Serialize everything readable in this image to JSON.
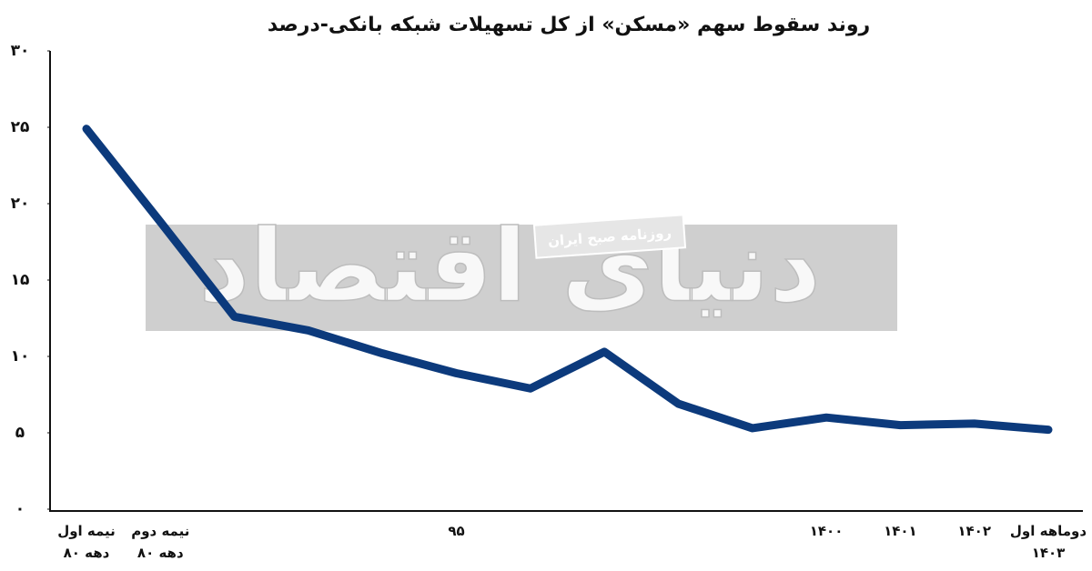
{
  "chart_data": {
    "type": "line",
    "title": "روند سقوط سهم «مسکن» از کل تسهیلات شبکه بانکی-درصد",
    "watermark": "دنیای اقتصاد",
    "watermark_subtitle": "روزنامه صبح ایران",
    "categories": [
      "نیمه اول\nدهه ۸۰",
      "نیمه دوم\nدهه ۸۰",
      null,
      null,
      null,
      "۹۵",
      null,
      null,
      null,
      null,
      "۱۴۰۰",
      "۱۴۰۱",
      "۱۴۰۲",
      "دوماهه اول\n۱۴۰۳"
    ],
    "series": [
      {
        "name": "سهم مسکن",
        "color": "#0c3a7c",
        "values": [
          24.9,
          18.8,
          12.6,
          11.7,
          10.2,
          8.9,
          7.9,
          10.3,
          6.9,
          5.3,
          6.0,
          5.5,
          5.6,
          5.2
        ]
      }
    ],
    "ylim": [
      0,
      30
    ],
    "yticks": [
      {
        "value": 0,
        "label": "۰"
      },
      {
        "value": 5,
        "label": "۵"
      },
      {
        "value": 10,
        "label": "۱۰"
      },
      {
        "value": 15,
        "label": "۱۵"
      },
      {
        "value": 20,
        "label": "۲۰"
      },
      {
        "value": 25,
        "label": "۲۵"
      },
      {
        "value": 30,
        "label": "۳۰"
      }
    ],
    "grid": false
  }
}
